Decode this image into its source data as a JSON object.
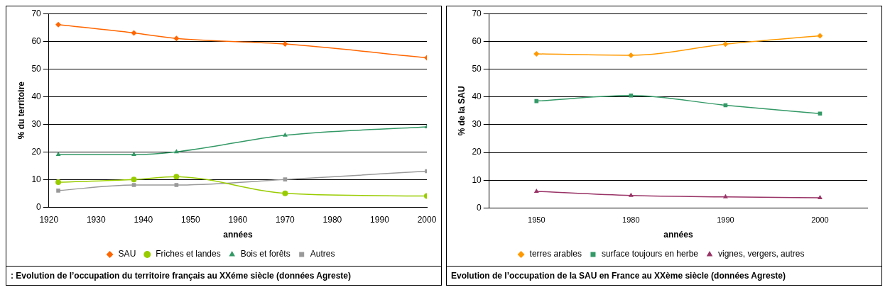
{
  "chart_data": [
    {
      "type": "line",
      "xlabel": "années",
      "ylabel": "% du territoire",
      "x": [
        1922,
        1938,
        1947,
        1970,
        2000
      ],
      "xlim": [
        1920,
        2000
      ],
      "xticks": [
        1920,
        1930,
        1940,
        1950,
        1960,
        1970,
        1980,
        1990,
        2000
      ],
      "ylim": [
        0,
        70
      ],
      "yticks": [
        0,
        10,
        20,
        30,
        40,
        50,
        60,
        70
      ],
      "grid": "y",
      "legend": "bottom",
      "series": [
        {
          "name": "SAU",
          "color": "#ff6600",
          "marker": "diamond",
          "values": [
            66,
            63,
            61,
            59,
            54
          ]
        },
        {
          "name": "Friches et landes",
          "color": "#99cc00",
          "marker": "circle",
          "values": [
            9,
            10,
            11,
            5,
            4
          ]
        },
        {
          "name": "Bois et forêts",
          "color": "#339966",
          "marker": "triangle",
          "values": [
            19,
            19,
            20,
            26,
            29
          ]
        },
        {
          "name": "Autres",
          "color": "#999999",
          "marker": "square",
          "values": [
            6,
            8,
            8,
            10,
            13
          ]
        }
      ],
      "annotations": [
        ": Evolution de l’occupation du territoire français au XXéme siècle (données Agreste)"
      ]
    },
    {
      "type": "line",
      "xlabel": "années",
      "ylabel": "% de la SAU",
      "categories": [
        "1950",
        "1980",
        "1990",
        "2000"
      ],
      "ylim": [
        0,
        70
      ],
      "yticks": [
        0,
        10,
        20,
        30,
        40,
        50,
        60,
        70
      ],
      "grid": "y",
      "legend": "bottom",
      "series": [
        {
          "name": "terres arables",
          "color": "#ff9900",
          "marker": "diamond",
          "values": [
            55.5,
            55,
            59,
            62
          ]
        },
        {
          "name": "surface toujours en herbe",
          "color": "#339966",
          "marker": "square",
          "values": [
            38.5,
            40.5,
            37,
            34
          ]
        },
        {
          "name": "vignes, vergers, autres",
          "color": "#993366",
          "marker": "triangle",
          "values": [
            6,
            4.5,
            4,
            3.7
          ]
        }
      ],
      "annotations": [
        "Evolution de l’occupation de la SAU en France au XXème siècle (données Agreste)"
      ]
    }
  ]
}
